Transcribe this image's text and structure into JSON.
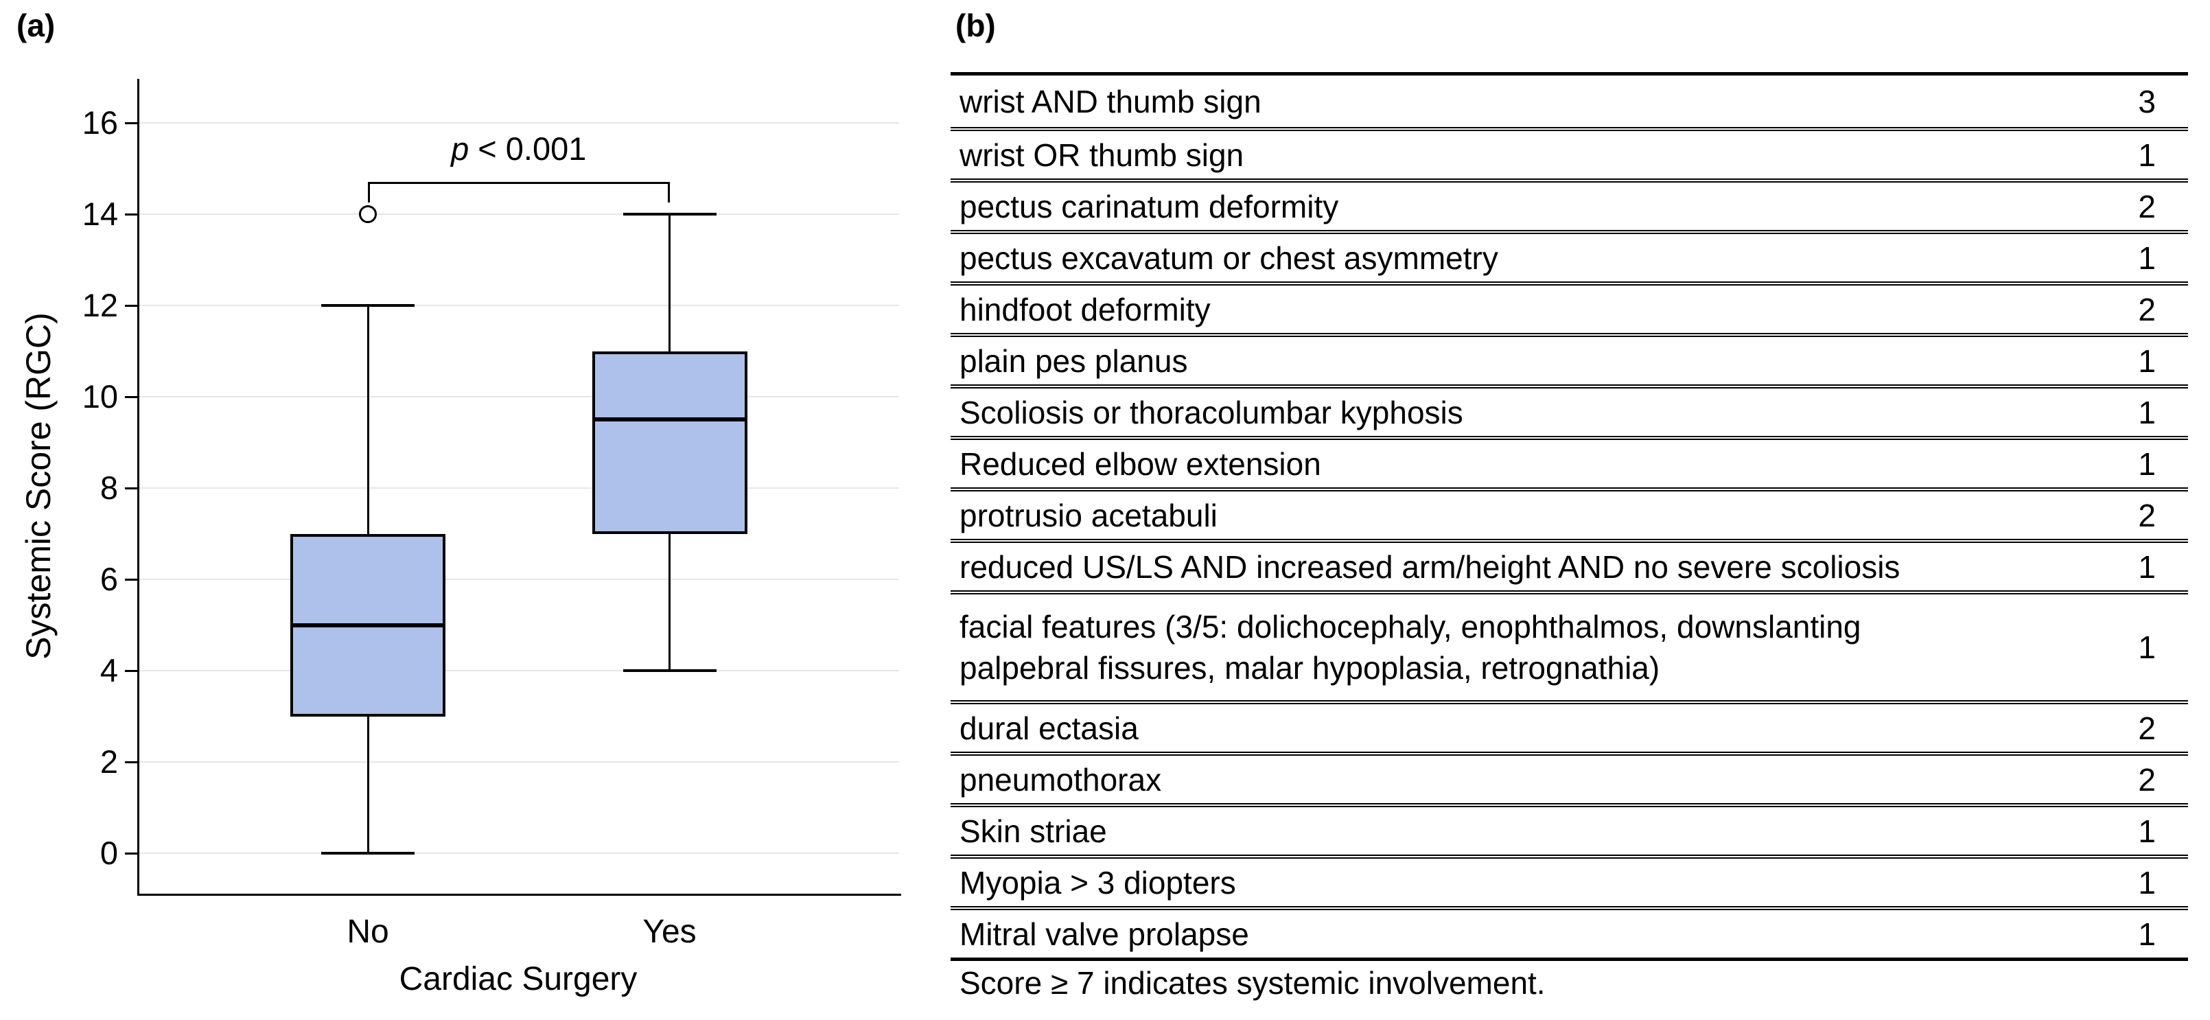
{
  "figure": {
    "panel_a_label": "(a)",
    "panel_b_label": "(b)"
  },
  "chart_data": [
    {
      "type": "boxplot",
      "title": "",
      "xlabel": "Cardiac Surgery",
      "ylabel": "Systemic Score (RGC)",
      "categories": [
        "No",
        "Yes"
      ],
      "ylim": [
        0,
        16
      ],
      "yticks": [
        0,
        2,
        4,
        6,
        8,
        10,
        12,
        14,
        16
      ],
      "grid": true,
      "box_fill_color": "#aec1ea",
      "series": [
        {
          "category": "No",
          "whisker_low": 0,
          "q1": 3,
          "median": 5,
          "q3": 7,
          "whisker_high": 12,
          "outliers": [
            14
          ]
        },
        {
          "category": "Yes",
          "whisker_low": 4,
          "q1": 7,
          "median": 9.5,
          "q3": 11,
          "whisker_high": 14,
          "outliers": []
        }
      ],
      "annotation": {
        "text": "p < 0.001",
        "between": [
          "No",
          "Yes"
        ],
        "y": 14.7
      }
    },
    {
      "type": "table",
      "columns": [
        "feature",
        "points"
      ],
      "rows": [
        {
          "feature": "wrist AND thumb sign",
          "points": "3"
        },
        {
          "feature": "wrist OR thumb sign",
          "points": "1"
        },
        {
          "feature": "pectus carinatum deformity",
          "points": "2"
        },
        {
          "feature": "pectus excavatum or chest asymmetry",
          "points": "1"
        },
        {
          "feature": "hindfoot deformity",
          "points": "2"
        },
        {
          "feature": "plain pes planus",
          "points": "1"
        },
        {
          "feature": "Scoliosis or thoracolumbar kyphosis",
          "points": "1"
        },
        {
          "feature": "Reduced elbow extension",
          "points": "1"
        },
        {
          "feature": "protrusio acetabuli",
          "points": "2"
        },
        {
          "feature": "reduced US/LS AND increased arm/height AND no severe scoliosis",
          "points": "1"
        },
        {
          "feature": "facial features (3/5: dolichocephaly, enophthalmos, downslanting\npalpebral fissures, malar hypoplasia, retrognathia)",
          "points": "1",
          "tall": true
        },
        {
          "feature": "dural ectasia",
          "points": "2"
        },
        {
          "feature": "pneumothorax",
          "points": "2"
        },
        {
          "feature": "Skin striae",
          "points": "1"
        },
        {
          "feature": "Myopia > 3 diopters",
          "points": "1"
        },
        {
          "feature": "Mitral valve prolapse",
          "points": "1"
        }
      ],
      "footer": "Score ≥ 7 indicates systemic involvement."
    }
  ],
  "colors": {
    "box_fill": "#aec1ea",
    "gridline": "#e6e6e6",
    "line": "#000000",
    "background": "#ffffff"
  }
}
